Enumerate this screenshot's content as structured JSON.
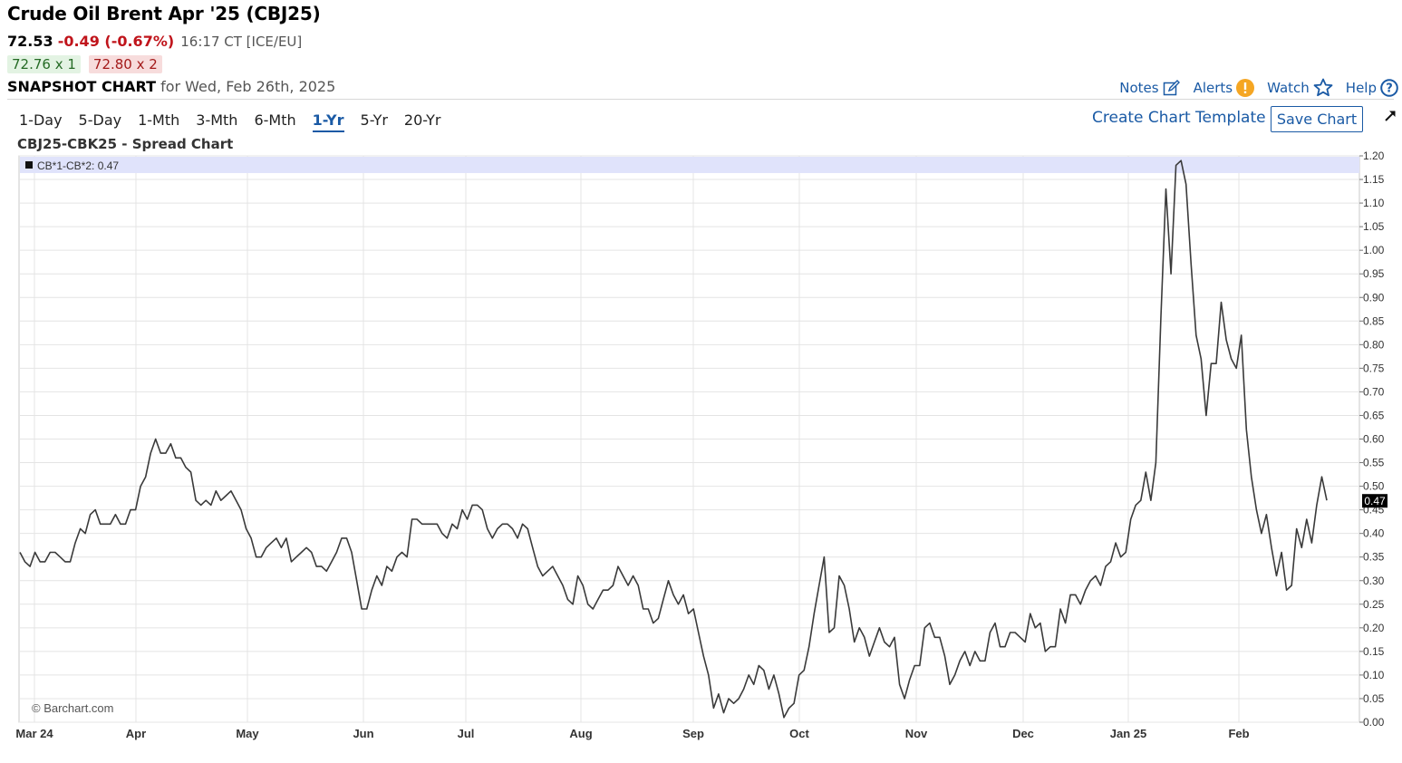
{
  "header": {
    "title": "Crude Oil Brent Apr '25 (CBJ25)",
    "last": "72.53",
    "change": "-0.49 (-0.67%)",
    "time": "16:17 CT [ICE/EU]",
    "bid": "72.76 x 1",
    "ask": "72.80 x 2",
    "snapshot_label": "SNAPSHOT CHART",
    "snapshot_date": "for Wed, Feb 26th, 2025"
  },
  "toolbar": {
    "notes": "Notes",
    "alerts": "Alerts",
    "watch": "Watch",
    "help": "Help",
    "create_template": "Create Chart Template",
    "save_chart": "Save Chart"
  },
  "periods": [
    {
      "label": "1-Day",
      "active": false
    },
    {
      "label": "5-Day",
      "active": false
    },
    {
      "label": "1-Mth",
      "active": false
    },
    {
      "label": "3-Mth",
      "active": false
    },
    {
      "label": "6-Mth",
      "active": false
    },
    {
      "label": "1-Yr",
      "active": true
    },
    {
      "label": "5-Yr",
      "active": false
    },
    {
      "label": "20-Yr",
      "active": false
    }
  ],
  "colors": {
    "accent": "#1a5aa5",
    "down": "#c0141b",
    "line": "#3a3a3a",
    "legend_bg": "#e0e3fb"
  },
  "chart_data": {
    "type": "line",
    "title": "CBJ25-CBK25 - Spread Chart",
    "legend": "CB*1-CB*2: 0.47",
    "watermark": "© Barchart.com",
    "last_value_label": "0.47",
    "x_labels": [
      "Mar 24",
      "Apr",
      "May",
      "Jun",
      "Jul",
      "Aug",
      "Sep",
      "Oct",
      "Nov",
      "Dec",
      "Jan 25",
      "Feb"
    ],
    "y_ticks": [
      "1.20",
      "1.15",
      "1.10",
      "1.05",
      "1.00",
      "0.95",
      "0.90",
      "0.85",
      "0.80",
      "0.75",
      "0.70",
      "0.65",
      "0.60",
      "0.55",
      "0.50",
      "0.45",
      "0.40",
      "0.35",
      "0.30",
      "0.25",
      "0.20",
      "0.15",
      "0.10",
      "0.05",
      "0.00"
    ],
    "ylim": [
      0,
      1.2
    ],
    "grid": true,
    "series": [
      {
        "values": [
          0.36,
          0.34,
          0.33,
          0.36,
          0.34,
          0.34,
          0.36,
          0.36,
          0.35,
          0.34,
          0.34,
          0.38,
          0.41,
          0.4,
          0.44,
          0.45,
          0.42,
          0.42,
          0.42,
          0.44,
          0.42,
          0.42,
          0.45,
          0.45,
          0.5,
          0.52,
          0.57,
          0.6,
          0.57,
          0.57,
          0.59,
          0.56,
          0.56,
          0.54,
          0.53,
          0.47,
          0.46,
          0.47,
          0.46,
          0.49,
          0.47,
          0.48,
          0.49,
          0.47,
          0.45,
          0.41,
          0.39,
          0.35,
          0.35,
          0.37,
          0.38,
          0.39,
          0.37,
          0.39,
          0.34,
          0.35,
          0.36,
          0.37,
          0.36,
          0.33,
          0.33,
          0.32,
          0.34,
          0.36,
          0.39,
          0.39,
          0.36,
          0.3,
          0.24,
          0.24,
          0.28,
          0.31,
          0.29,
          0.33,
          0.32,
          0.35,
          0.36,
          0.35,
          0.43,
          0.43,
          0.42,
          0.42,
          0.42,
          0.42,
          0.4,
          0.39,
          0.42,
          0.41,
          0.45,
          0.43,
          0.46,
          0.46,
          0.45,
          0.41,
          0.39,
          0.41,
          0.42,
          0.42,
          0.41,
          0.39,
          0.42,
          0.41,
          0.37,
          0.33,
          0.31,
          0.32,
          0.33,
          0.31,
          0.29,
          0.26,
          0.25,
          0.31,
          0.29,
          0.25,
          0.24,
          0.26,
          0.28,
          0.28,
          0.29,
          0.33,
          0.31,
          0.29,
          0.31,
          0.29,
          0.24,
          0.24,
          0.21,
          0.22,
          0.26,
          0.3,
          0.27,
          0.25,
          0.27,
          0.23,
          0.24,
          0.19,
          0.14,
          0.1,
          0.03,
          0.06,
          0.02,
          0.05,
          0.04,
          0.05,
          0.07,
          0.1,
          0.08,
          0.12,
          0.11,
          0.07,
          0.1,
          0.06,
          0.01,
          0.03,
          0.04,
          0.1,
          0.11,
          0.16,
          0.23,
          0.29,
          0.35,
          0.19,
          0.2,
          0.31,
          0.29,
          0.24,
          0.17,
          0.2,
          0.18,
          0.14,
          0.17,
          0.2,
          0.17,
          0.16,
          0.18,
          0.08,
          0.05,
          0.09,
          0.12,
          0.12,
          0.2,
          0.21,
          0.18,
          0.18,
          0.14,
          0.08,
          0.1,
          0.13,
          0.15,
          0.12,
          0.15,
          0.13,
          0.13,
          0.19,
          0.21,
          0.16,
          0.16,
          0.19,
          0.19,
          0.18,
          0.17,
          0.23,
          0.2,
          0.21,
          0.15,
          0.16,
          0.16,
          0.24,
          0.21,
          0.27,
          0.27,
          0.25,
          0.28,
          0.3,
          0.31,
          0.29,
          0.33,
          0.34,
          0.38,
          0.35,
          0.36,
          0.43,
          0.46,
          0.47,
          0.53,
          0.47,
          0.55,
          0.86,
          1.13,
          0.95,
          1.18,
          1.19,
          1.14,
          0.97,
          0.82,
          0.77,
          0.65,
          0.76,
          0.76,
          0.89,
          0.81,
          0.77,
          0.75,
          0.82,
          0.62,
          0.52,
          0.45,
          0.4,
          0.44,
          0.37,
          0.31,
          0.36,
          0.28,
          0.29,
          0.41,
          0.37,
          0.43,
          0.38,
          0.46,
          0.52,
          0.47
        ]
      }
    ]
  }
}
